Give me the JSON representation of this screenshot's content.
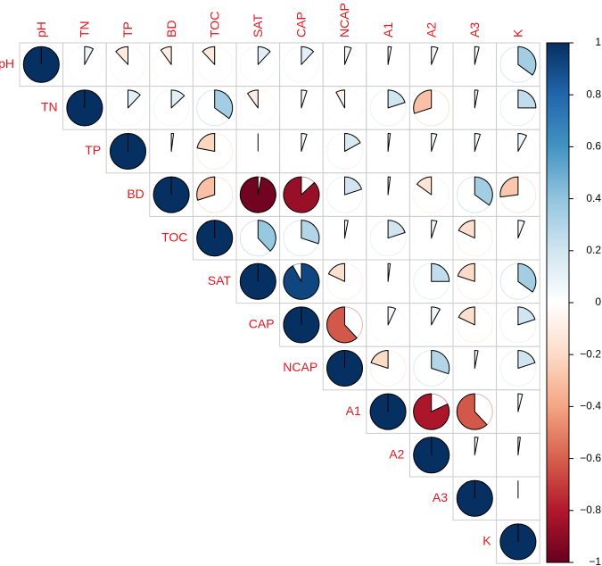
{
  "chart_data": {
    "type": "heatmap",
    "style": "upper-triangle correlation matrix, pie glyphs",
    "variables": [
      "pH",
      "TN",
      "TP",
      "BD",
      "TOC",
      "SAT",
      "CAP",
      "NCAP",
      "A1",
      "A2",
      "A3",
      "K"
    ],
    "correlations": [
      [
        1,
        0.08,
        -0.12,
        -0.1,
        -0.12,
        0.12,
        0.12,
        0.06,
        0.03,
        0.06,
        0.04,
        0.35
      ],
      [
        null,
        1,
        0.12,
        0.13,
        0.35,
        -0.1,
        0.05,
        -0.08,
        0.2,
        -0.3,
        0.03,
        0.25
      ],
      [
        null,
        null,
        1,
        0.02,
        -0.22,
        0.0,
        0.05,
        0.17,
        0.02,
        0.05,
        0.05,
        0.08
      ],
      [
        null,
        null,
        null,
        1,
        -0.3,
        -0.97,
        -0.87,
        0.2,
        0.02,
        -0.15,
        0.35,
        -0.27
      ],
      [
        null,
        null,
        null,
        null,
        1,
        0.38,
        0.3,
        0.03,
        0.2,
        0.05,
        -0.18,
        0.06
      ],
      [
        null,
        null,
        null,
        null,
        null,
        1,
        0.92,
        -0.18,
        0.02,
        0.25,
        -0.2,
        0.35
      ],
      [
        null,
        null,
        null,
        null,
        null,
        null,
        1,
        -0.62,
        0.07,
        0.08,
        -0.18,
        0.2
      ],
      [
        null,
        null,
        null,
        null,
        null,
        null,
        null,
        1,
        -0.2,
        0.3,
        0.03,
        0.2
      ],
      [
        null,
        null,
        null,
        null,
        null,
        null,
        null,
        null,
        1,
        -0.82,
        -0.62,
        0.04
      ],
      [
        null,
        null,
        null,
        null,
        null,
        null,
        null,
        null,
        null,
        1,
        0.03,
        0.02
      ],
      [
        null,
        null,
        null,
        null,
        null,
        null,
        null,
        null,
        null,
        null,
        1,
        0.0
      ],
      [
        null,
        null,
        null,
        null,
        null,
        null,
        null,
        null,
        null,
        null,
        null,
        1
      ]
    ],
    "colorbar": {
      "range": [
        -1,
        1
      ],
      "ticks": [
        "1",
        "0.8",
        "0.6",
        "0.4",
        "0.2",
        "0",
        "−0.2",
        "−0.4",
        "−0.6",
        "−0.8",
        "−1"
      ],
      "placement": "right"
    },
    "label_color": "#e8141e",
    "color_scale": [
      "#67001f",
      "#b2182b",
      "#d6604d",
      "#f4a582",
      "#fddbc7",
      "#ffffff",
      "#d1e5f0",
      "#92c5de",
      "#4393c3",
      "#2166ac",
      "#053061"
    ]
  }
}
